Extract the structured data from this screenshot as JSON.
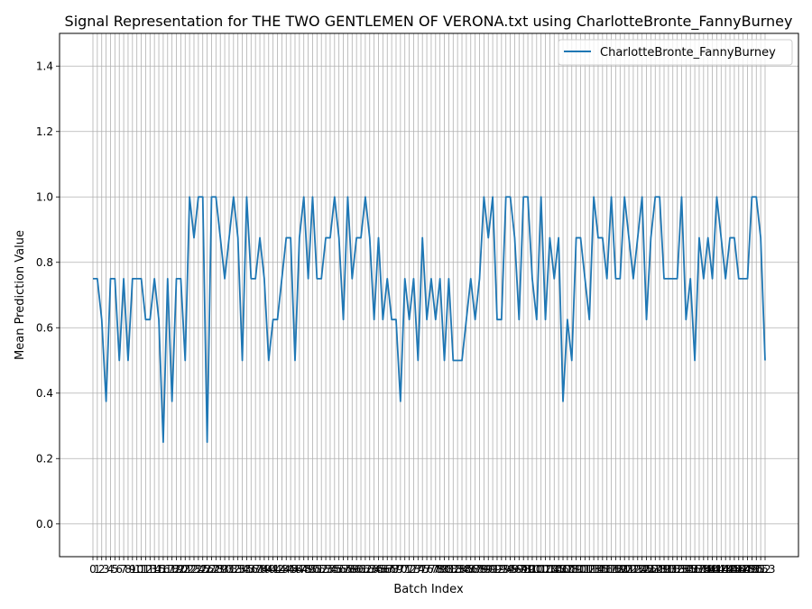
{
  "chart_data": {
    "type": "line",
    "title": "Signal Representation for THE TWO GENTLEMEN OF VERONA.txt using CharlotteBronte_FannyBurney",
    "xlabel": "Batch Index",
    "ylabel": "Mean Prediction Value",
    "xlim": [
      0,
      153
    ],
    "ylim": [
      -0.1,
      1.5
    ],
    "y_ticks": [
      0.0,
      0.2,
      0.4,
      0.6,
      0.8,
      1.0,
      1.2,
      1.4
    ],
    "grid": true,
    "legend_position": "top-right",
    "series": [
      {
        "name": "CharlotteBronte_FannyBurney",
        "color": "#1f77b4",
        "x": [
          0,
          1,
          2,
          3,
          4,
          5,
          6,
          7,
          8,
          9,
          10,
          11,
          12,
          13,
          14,
          15,
          16,
          17,
          18,
          19,
          20,
          21,
          22,
          23,
          24,
          25,
          26,
          27,
          28,
          29,
          30,
          31,
          32,
          33,
          34,
          35,
          36,
          37,
          38,
          39,
          40,
          41,
          42,
          43,
          44,
          45,
          46,
          47,
          48,
          49,
          50,
          51,
          52,
          53,
          54,
          55,
          56,
          57,
          58,
          59,
          60,
          61,
          62,
          63,
          64,
          65,
          66,
          67,
          68,
          69,
          70,
          71,
          72,
          73,
          74,
          75,
          76,
          77,
          78,
          79,
          80,
          81,
          82,
          83,
          84,
          85,
          86,
          87,
          88,
          89,
          90,
          91,
          92,
          93,
          94,
          95,
          96,
          97,
          98,
          99,
          100,
          101,
          102,
          103,
          104,
          105,
          106,
          107,
          108,
          109,
          110,
          111,
          112,
          113,
          114,
          115,
          116,
          117,
          118,
          119,
          120,
          121,
          122,
          123,
          124,
          125,
          126,
          127,
          128,
          129,
          130,
          131,
          132,
          133,
          134,
          135,
          136,
          137,
          138,
          139,
          140,
          141,
          142,
          143,
          144,
          145,
          146,
          147,
          148,
          149,
          150,
          151,
          152,
          153
        ],
        "values": [
          0.75,
          0.75,
          0.625,
          0.375,
          0.75,
          0.75,
          0.5,
          0.75,
          0.5,
          0.75,
          0.75,
          0.75,
          0.625,
          0.625,
          0.75,
          0.625,
          0.25,
          0.75,
          0.375,
          0.75,
          0.75,
          0.5,
          1.0,
          0.875,
          1.0,
          1.0,
          0.25,
          1.0,
          1.0,
          0.875,
          0.75,
          0.875,
          1.0,
          0.875,
          0.5,
          1.0,
          0.75,
          0.75,
          0.875,
          0.75,
          0.5,
          0.625,
          0.625,
          0.75,
          0.875,
          0.875,
          0.5,
          0.875,
          1.0,
          0.75,
          1.0,
          0.75,
          0.75,
          0.875,
          0.875,
          1.0,
          0.875,
          0.625,
          1.0,
          0.75,
          0.875,
          0.875,
          1.0,
          0.875,
          0.625,
          0.875,
          0.625,
          0.75,
          0.625,
          0.625,
          0.375,
          0.75,
          0.625,
          0.75,
          0.5,
          0.875,
          0.625,
          0.75,
          0.625,
          0.75,
          0.5,
          0.75,
          0.5,
          0.5,
          0.5,
          0.625,
          0.75,
          0.625,
          0.75,
          1.0,
          0.875,
          1.0,
          0.625,
          0.625,
          1.0,
          1.0,
          0.875,
          0.625,
          1.0,
          1.0,
          0.75,
          0.625,
          1.0,
          0.625,
          0.875,
          0.75,
          0.875,
          0.375,
          0.625,
          0.5,
          0.875,
          0.875,
          0.75,
          0.625,
          1.0,
          0.875,
          0.875,
          0.75,
          1.0,
          0.75,
          0.75,
          1.0,
          0.875,
          0.75,
          0.875,
          1.0,
          0.625,
          0.875,
          1.0,
          1.0,
          0.75,
          0.75,
          0.75,
          0.75,
          1.0,
          0.625,
          0.75,
          0.5,
          0.875,
          0.75,
          0.875,
          0.75,
          1.0,
          0.875,
          0.75,
          0.875,
          0.875,
          0.75,
          0.75,
          0.75,
          1.0,
          1.0,
          0.875,
          0.5
        ]
      }
    ]
  }
}
